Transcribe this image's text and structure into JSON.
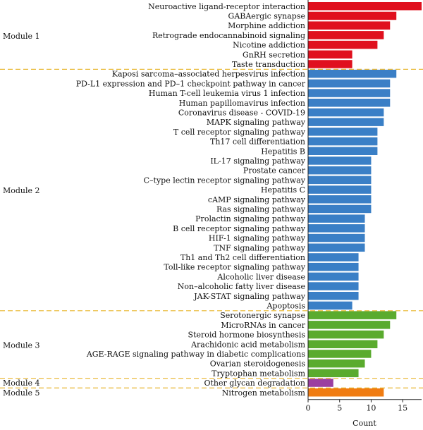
{
  "chart_data": {
    "type": "bar",
    "orientation": "horizontal",
    "xlabel": "Count",
    "xlim": [
      0,
      18
    ],
    "xticks": [
      0,
      5,
      10,
      15
    ],
    "grid": false,
    "modules": [
      {
        "name": "Module 1",
        "color": "#e0101e",
        "items": [
          {
            "category": "Neuroactive ligand-receptor interaction",
            "value": 18
          },
          {
            "category": "GABAergic synapse",
            "value": 14
          },
          {
            "category": "Morphine addiction",
            "value": 13
          },
          {
            "category": "Retrograde endocannabinoid signaling",
            "value": 12
          },
          {
            "category": "Nicotine addiction",
            "value": 11
          },
          {
            "category": "GnRH secretion",
            "value": 7
          },
          {
            "category": "Taste transduction",
            "value": 7
          }
        ]
      },
      {
        "name": "Module 2",
        "color": "#3a7fc6",
        "items": [
          {
            "category": "Kaposi sarcoma–associated herpesvirus infection",
            "value": 14
          },
          {
            "category": "PD-L1 expression and PD–1 checkpoint pathway in cancer",
            "value": 13
          },
          {
            "category": "Human T-cell leukemia virus 1 infection",
            "value": 13
          },
          {
            "category": "Human papillomavirus infection",
            "value": 13
          },
          {
            "category": "Coronavirus disease - COVID-19",
            "value": 12
          },
          {
            "category": "MAPK signaling pathway",
            "value": 12
          },
          {
            "category": "T cell receptor signaling pathway",
            "value": 11
          },
          {
            "category": "Th17 cell differentiation",
            "value": 11
          },
          {
            "category": "Hepatitis B",
            "value": 11
          },
          {
            "category": "IL-17 signaling pathway",
            "value": 10
          },
          {
            "category": "Prostate cancer",
            "value": 10
          },
          {
            "category": "C–type lectin receptor signaling pathway",
            "value": 10
          },
          {
            "category": "Hepatitis C",
            "value": 10
          },
          {
            "category": "cAMP signaling pathway",
            "value": 10
          },
          {
            "category": "Ras signaling pathway",
            "value": 10
          },
          {
            "category": "Prolactin signaling pathway",
            "value": 9
          },
          {
            "category": "B cell receptor signaling pathway",
            "value": 9
          },
          {
            "category": "HIF-1 signaling pathway",
            "value": 9
          },
          {
            "category": "TNF signaling pathway",
            "value": 9
          },
          {
            "category": "Th1 and Th2 cell differentiation",
            "value": 8
          },
          {
            "category": "Toll-like receptor signaling pathway",
            "value": 8
          },
          {
            "category": "Alcoholic liver disease",
            "value": 8
          },
          {
            "category": "Non–alcoholic fatty liver disease",
            "value": 8
          },
          {
            "category": "JAK-STAT signaling pathway",
            "value": 8
          },
          {
            "category": "Apoptosis",
            "value": 7
          }
        ]
      },
      {
        "name": "Module 3",
        "color": "#5aab2e",
        "items": [
          {
            "category": "Serotonergic synapse",
            "value": 14
          },
          {
            "category": "MicroRNAs in cancer",
            "value": 13
          },
          {
            "category": "Steroid hormone biosynthesis",
            "value": 12
          },
          {
            "category": "Arachidonic acid metabolism",
            "value": 11
          },
          {
            "category": "AGE-RAGE signaling pathway in diabetic complications",
            "value": 10
          },
          {
            "category": "Ovarian steroidogenesis",
            "value": 9
          },
          {
            "category": "Tryptophan metabolism",
            "value": 8
          }
        ]
      },
      {
        "name": "Module 4",
        "color": "#9b3fa0",
        "items": [
          {
            "category": "Other glycan degradation",
            "value": 4
          }
        ]
      },
      {
        "name": "Module 5",
        "color": "#f07c12",
        "items": [
          {
            "category": "Nitrogen metabolism",
            "value": 12
          }
        ]
      }
    ],
    "separator_color": "#e8b52a"
  }
}
